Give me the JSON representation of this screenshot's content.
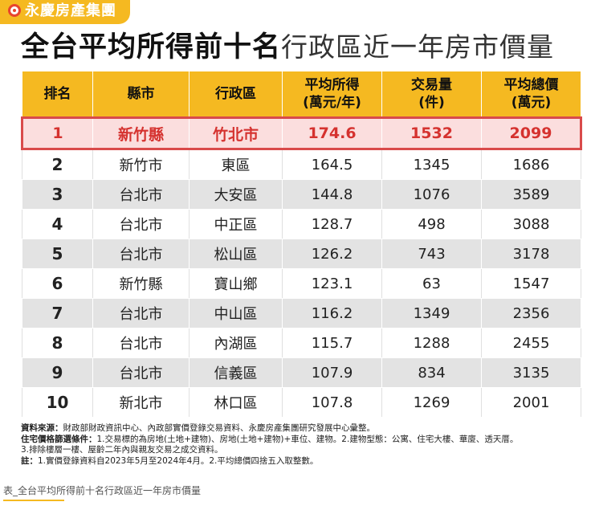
{
  "brand": {
    "name": "永慶房產集團",
    "logo_icon": "ring-logo-icon",
    "accent": "#f5b921",
    "logo_color": "#e8442e"
  },
  "title": {
    "bold": "全台平均所得前十名",
    "light": "行政區近一年房市價量"
  },
  "table": {
    "headers": {
      "rank": "排名",
      "county": "縣市",
      "district": "行政區",
      "income_line1": "平均所得",
      "income_line2": "(萬元/年)",
      "volume_line1": "交易量",
      "volume_line2": "(件)",
      "price_line1": "平均總價",
      "price_line2": "(萬元)"
    },
    "rows": [
      {
        "rank": "1",
        "county": "新竹縣",
        "district": "竹北市",
        "income": "174.6",
        "volume": "1532",
        "price": "2099"
      },
      {
        "rank": "2",
        "county": "新竹市",
        "district": "東區",
        "income": "164.5",
        "volume": "1345",
        "price": "1686"
      },
      {
        "rank": "3",
        "county": "台北市",
        "district": "大安區",
        "income": "144.8",
        "volume": "1076",
        "price": "3589"
      },
      {
        "rank": "4",
        "county": "台北市",
        "district": "中正區",
        "income": "128.7",
        "volume": "498",
        "price": "3088"
      },
      {
        "rank": "5",
        "county": "台北市",
        "district": "松山區",
        "income": "126.2",
        "volume": "743",
        "price": "3178"
      },
      {
        "rank": "6",
        "county": "新竹縣",
        "district": "寶山鄉",
        "income": "123.1",
        "volume": "63",
        "price": "1547"
      },
      {
        "rank": "7",
        "county": "台北市",
        "district": "中山區",
        "income": "116.2",
        "volume": "1349",
        "price": "2356"
      },
      {
        "rank": "8",
        "county": "台北市",
        "district": "內湖區",
        "income": "115.7",
        "volume": "1288",
        "price": "2455"
      },
      {
        "rank": "9",
        "county": "台北市",
        "district": "信義區",
        "income": "107.9",
        "volume": "834",
        "price": "3135"
      },
      {
        "rank": "10",
        "county": "新北市",
        "district": "林口區",
        "income": "107.8",
        "volume": "1269",
        "price": "2001"
      }
    ],
    "highlight_color": "#d5322f"
  },
  "notes": {
    "source_label": "資料來源：",
    "source_text": "財政部財政資訊中心、內政部實價登錄交易資料、永慶房產集團研究發展中心彙整。",
    "criteria_label": "住宅價格篩選條件：",
    "criteria_text": "1.交易標的為房地(土地+建物)、房地(土地+建物)+車位、建物。2.建物型態：公寓、住宅大樓、華廈、透天厝。",
    "criteria_text2": "3.排除樓層一樓、屋齡二年內與親友交易之成交資料。",
    "note_label": "註：",
    "note_text": "1.實價登錄資料自2023年5月至2024年4月。2.平均總價四捨五入取整數。"
  },
  "caption": "表_全台平均所得前十名行政區近一年房市價量"
}
